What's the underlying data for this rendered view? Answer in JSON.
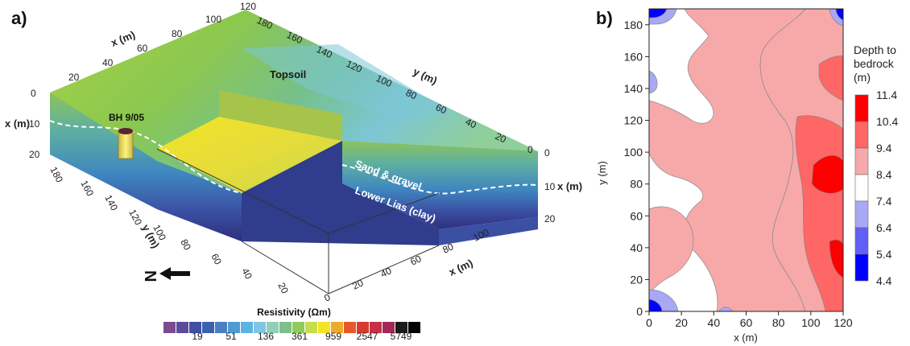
{
  "panels": {
    "a": {
      "label": "a)",
      "axis_words": {
        "x_top": "x (m)",
        "y_top": "y (m)",
        "x_depth_left": "x (m)",
        "x_depth_right": "x (m)",
        "y_bottom": "y (m)",
        "x_bottom": "x (m)"
      },
      "x_top_ticks": [
        "20",
        "40",
        "60",
        "80",
        "100",
        "120"
      ],
      "y_top_ticks": [
        "180",
        "160",
        "140",
        "120",
        "100",
        "80",
        "60",
        "40",
        "20",
        "0"
      ],
      "depth_left_ticks": [
        "0",
        "10",
        "20"
      ],
      "depth_right_ticks": [
        "0",
        "10",
        "20"
      ],
      "y_bottom_ticks": [
        "180",
        "160",
        "140",
        "120",
        "100",
        "80",
        "60",
        "40",
        "20"
      ],
      "x_bottom_ticks": [
        "0",
        "20",
        "40",
        "60",
        "80",
        "100"
      ],
      "annotations": {
        "borehole": "BH 9/05",
        "topsoil": "Topsoil",
        "sand_gravel": "Sand & gravel",
        "lower_lias": "Lower Lias (clay)"
      },
      "north_letter": "N",
      "colorbar": {
        "title": "Resistivity (Ωm)",
        "labels": [
          "19",
          "51",
          "136",
          "361",
          "959",
          "2547",
          "5749"
        ],
        "colors": [
          "#7c4a8e",
          "#5c4a9a",
          "#3f4fa3",
          "#3a62b0",
          "#4a7fc2",
          "#4f9bd4",
          "#59b4e3",
          "#7fc6e4",
          "#8fcfb9",
          "#7cc08a",
          "#8fcb5a",
          "#c5de4a",
          "#f2e426",
          "#f0a92a",
          "#e8582a",
          "#d83a2e",
          "#c72f45",
          "#a3285a",
          "#1a1a1a",
          "#000000"
        ]
      },
      "chart_data": {
        "type": "heatmap",
        "title": "",
        "quantity": "Resistivity (Ωm)",
        "x_range": [
          0,
          120
        ],
        "y_range": [
          0,
          190
        ],
        "depth_range": [
          0,
          20
        ],
        "layers": [
          "Topsoil",
          "Sand & gravel",
          "Lower Lias (clay)"
        ],
        "colorbar_ticks": [
          19,
          51,
          136,
          361,
          959,
          2547,
          5749
        ]
      }
    },
    "b": {
      "label": "b)",
      "xlabel": "x (m)",
      "ylabel": "y (m)",
      "x_ticks": [
        "0",
        "20",
        "40",
        "60",
        "80",
        "100",
        "120"
      ],
      "y_ticks": [
        "0",
        "20",
        "40",
        "60",
        "80",
        "100",
        "120",
        "140",
        "160",
        "180"
      ],
      "legend_title": [
        "Depth to",
        "bedrock",
        "(m)"
      ],
      "legend_labels": [
        "11.4",
        "10.4",
        "9.4",
        "8.4",
        "7.4",
        "6.4",
        "5.4",
        "4.4"
      ],
      "legend_colors": [
        "#ff0000",
        "#ff6666",
        "#f7a9a9",
        "#ffffff",
        "#a8a8f5",
        "#6060f5",
        "#0000ff"
      ],
      "chart_data": {
        "type": "heatmap",
        "title": "",
        "quantity": "Depth to bedrock (m)",
        "xlabel": "x (m)",
        "ylabel": "y (m)",
        "xlim": [
          0,
          120
        ],
        "ylim": [
          0,
          190
        ],
        "levels": [
          4.4,
          5.4,
          6.4,
          7.4,
          8.4,
          9.4,
          10.4,
          11.4
        ],
        "legend": "right"
      }
    }
  }
}
